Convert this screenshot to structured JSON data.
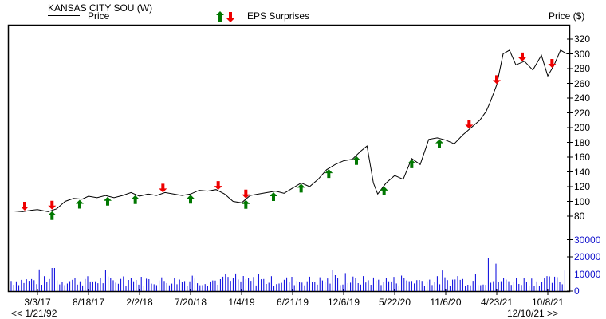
{
  "header": {
    "title": "KANSAS CITY SOU (W)",
    "legend_price": "Price",
    "legend_eps": "EPS Surprises",
    "price_axis_label": "Price ($)"
  },
  "navigation": {
    "start_date": "<< 1/21/92",
    "end_date": "12/10/21 >>"
  },
  "colors": {
    "price_line": "#000000",
    "volume_bars": "#0000dd",
    "eps_positive": "#007700",
    "eps_negative": "#ee0000",
    "volume_axis_text": "#1010cc"
  },
  "chart_data": {
    "type": "line",
    "title": "KANSAS CITY SOU (W)",
    "xlabel": "",
    "ylabel": "Price ($)",
    "ylim": [
      70,
      330
    ],
    "x_tick_labels": [
      "3/3/17",
      "8/18/17",
      "2/2/18",
      "7/20/18",
      "1/4/19",
      "6/21/19",
      "12/6/19",
      "5/22/20",
      "11/6/20",
      "4/23/21",
      "10/8/21"
    ],
    "y_tick_labels": [
      "80",
      "100",
      "120",
      "140",
      "160",
      "180",
      "200",
      "220",
      "240",
      "260",
      "280",
      "300",
      "320"
    ],
    "volume_tick_labels": [
      "0",
      "10000",
      "20000",
      "30000"
    ],
    "volume_ylim": [
      0,
      35000
    ],
    "legend": [
      "Price",
      "EPS Surprises"
    ],
    "grid": false,
    "series": [
      {
        "name": "Price",
        "x": [
          "12/16/16",
          "1/13/17",
          "2/10/17",
          "3/3/17",
          "4/7/17",
          "5/5/17",
          "6/2/17",
          "6/30/17",
          "7/28/17",
          "8/18/17",
          "9/15/17",
          "10/13/17",
          "11/10/17",
          "12/8/17",
          "1/5/18",
          "2/2/18",
          "3/2/18",
          "3/30/18",
          "4/27/18",
          "5/25/18",
          "6/22/18",
          "7/20/18",
          "8/17/18",
          "9/14/18",
          "10/12/18",
          "11/9/18",
          "12/7/18",
          "1/4/19",
          "2/1/19",
          "3/1/19",
          "3/29/19",
          "4/26/19",
          "5/24/19",
          "6/21/19",
          "7/19/19",
          "8/16/19",
          "9/13/19",
          "10/11/19",
          "11/8/19",
          "12/6/19",
          "1/3/20",
          "1/31/20",
          "2/21/20",
          "3/13/20",
          "3/27/20",
          "4/24/20",
          "5/22/20",
          "6/19/20",
          "7/17/20",
          "8/14/20",
          "9/11/20",
          "10/9/20",
          "11/6/20",
          "12/4/20",
          "1/1/21",
          "1/29/21",
          "2/26/21",
          "3/19/21",
          "4/2/21",
          "4/23/21",
          "5/14/21",
          "6/4/21",
          "6/25/21",
          "7/23/21",
          "8/20/21",
          "9/17/21",
          "10/8/21",
          "10/29/21",
          "11/19/21",
          "12/10/21"
        ],
        "values": [
          87,
          86,
          88,
          89,
          86,
          90,
          100,
          104,
          103,
          107,
          105,
          108,
          105,
          108,
          112,
          107,
          110,
          108,
          112,
          110,
          108,
          110,
          115,
          114,
          116,
          110,
          100,
          98,
          108,
          110,
          112,
          114,
          111,
          118,
          125,
          120,
          130,
          143,
          150,
          155,
          157,
          168,
          175,
          125,
          110,
          125,
          135,
          130,
          158,
          150,
          184,
          186,
          183,
          178,
          190,
          200,
          210,
          222,
          235,
          258,
          300,
          305,
          285,
          290,
          278,
          298,
          270,
          285,
          305,
          300
        ]
      }
    ],
    "eps_surprises": [
      {
        "date": "1/20/17",
        "type": "negative"
      },
      {
        "date": "4/20/17",
        "type": "negative"
      },
      {
        "date": "4/20/17",
        "type": "positive"
      },
      {
        "date": "7/20/17",
        "type": "positive"
      },
      {
        "date": "10/20/17",
        "type": "positive"
      },
      {
        "date": "1/19/18",
        "type": "positive"
      },
      {
        "date": "4/20/18",
        "type": "negative"
      },
      {
        "date": "7/20/18",
        "type": "positive"
      },
      {
        "date": "10/19/18",
        "type": "negative"
      },
      {
        "date": "1/18/19",
        "type": "negative"
      },
      {
        "date": "1/18/19",
        "type": "positive"
      },
      {
        "date": "4/19/19",
        "type": "positive"
      },
      {
        "date": "7/19/19",
        "type": "positive"
      },
      {
        "date": "10/18/19",
        "type": "positive"
      },
      {
        "date": "1/17/20",
        "type": "positive"
      },
      {
        "date": "4/17/20",
        "type": "positive"
      },
      {
        "date": "7/17/20",
        "type": "positive"
      },
      {
        "date": "10/16/20",
        "type": "positive"
      },
      {
        "date": "1/22/21",
        "type": "negative"
      },
      {
        "date": "4/23/21",
        "type": "negative"
      },
      {
        "date": "7/16/21",
        "type": "negative"
      },
      {
        "date": "10/22/21",
        "type": "negative"
      }
    ]
  }
}
